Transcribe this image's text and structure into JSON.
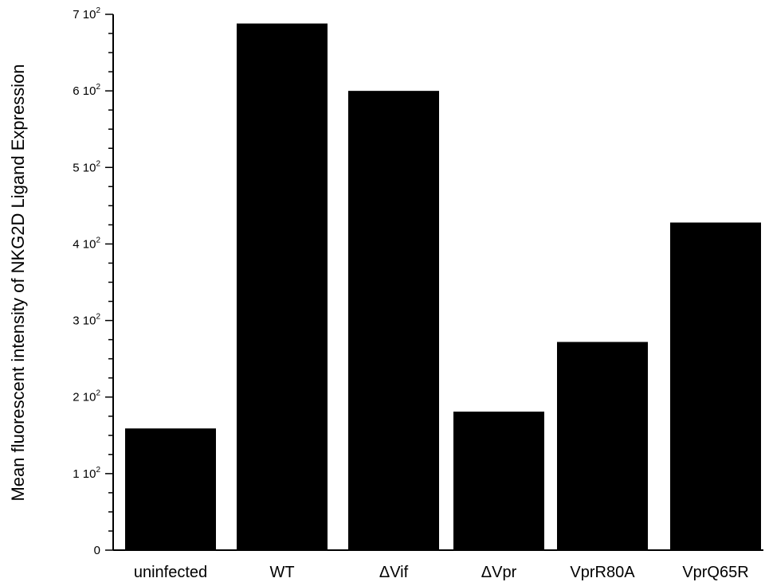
{
  "chart_data": {
    "type": "bar",
    "title": "",
    "xlabel": "",
    "ylabel": "Mean fluorescent intensity of NKG2D Ligand Expression",
    "categories": [
      "uninfected",
      "WT",
      "ΔVif",
      "ΔVpr",
      "VprR80A",
      "VprQ65R"
    ],
    "values": [
      159,
      688,
      600,
      181,
      272,
      428
    ],
    "ylim": [
      0,
      700
    ],
    "yticks": [
      {
        "value": 0,
        "label": "0",
        "exp": ""
      },
      {
        "value": 100,
        "label": "1 10",
        "exp": "2"
      },
      {
        "value": 200,
        "label": "2 10",
        "exp": "2"
      },
      {
        "value": 300,
        "label": "3 10",
        "exp": "2"
      },
      {
        "value": 400,
        "label": "4 10",
        "exp": "2"
      },
      {
        "value": 500,
        "label": "5 10",
        "exp": "2"
      },
      {
        "value": 600,
        "label": "6 10",
        "exp": "2"
      },
      {
        "value": 700,
        "label": "7 10",
        "exp": "2"
      }
    ],
    "minor_tick_step": 25,
    "bar_color": "#000000",
    "grid": false,
    "legend": "none"
  }
}
